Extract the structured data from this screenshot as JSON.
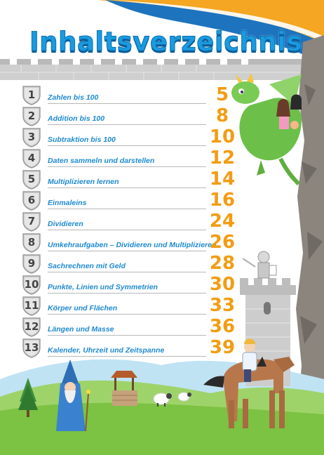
{
  "title": "Inhaltsverzeichnis",
  "colors": {
    "title": "#1a9be0",
    "entry_text": "#1e8ad0",
    "page_number": "#f39c12",
    "banner_orange": "#f5a623",
    "banner_blue": "#1e73be",
    "grass": "#7cc243",
    "castle_wall": "#c9c9c9"
  },
  "entries": [
    {
      "number": "1",
      "label": "Zahlen bis 100",
      "page": "5"
    },
    {
      "number": "2",
      "label": "Addition bis 100",
      "page": "8"
    },
    {
      "number": "3",
      "label": "Subtraktion bis 100",
      "page": "10"
    },
    {
      "number": "4",
      "label": "Daten sammeln und darstellen",
      "page": "12"
    },
    {
      "number": "5",
      "label": "Multiplizieren lernen",
      "page": "14"
    },
    {
      "number": "6",
      "label": "Einmaleins",
      "page": "16"
    },
    {
      "number": "7",
      "label": "Dividieren",
      "page": "24"
    },
    {
      "number": "8",
      "label": "Umkehraufgaben – Dividieren und Multiplizieren",
      "page": "26"
    },
    {
      "number": "9",
      "label": "Sachrechnen mit Geld",
      "page": "28"
    },
    {
      "number": "10",
      "label": "Punkte, Linien und Symmetrien",
      "page": "30"
    },
    {
      "number": "11",
      "label": "Körper und Flächen",
      "page": "33"
    },
    {
      "number": "12",
      "label": "Längen und Masse",
      "page": "36"
    },
    {
      "number": "13",
      "label": "Kalender, Uhrzeit und Zeitspanne",
      "page": "39"
    }
  ],
  "illustrations": [
    "dragon-icon",
    "princess-icon",
    "knight-icon",
    "tower-icon",
    "horse-rider-icon",
    "wizard-icon",
    "well-icon",
    "sheep-icon",
    "tree-icon"
  ]
}
